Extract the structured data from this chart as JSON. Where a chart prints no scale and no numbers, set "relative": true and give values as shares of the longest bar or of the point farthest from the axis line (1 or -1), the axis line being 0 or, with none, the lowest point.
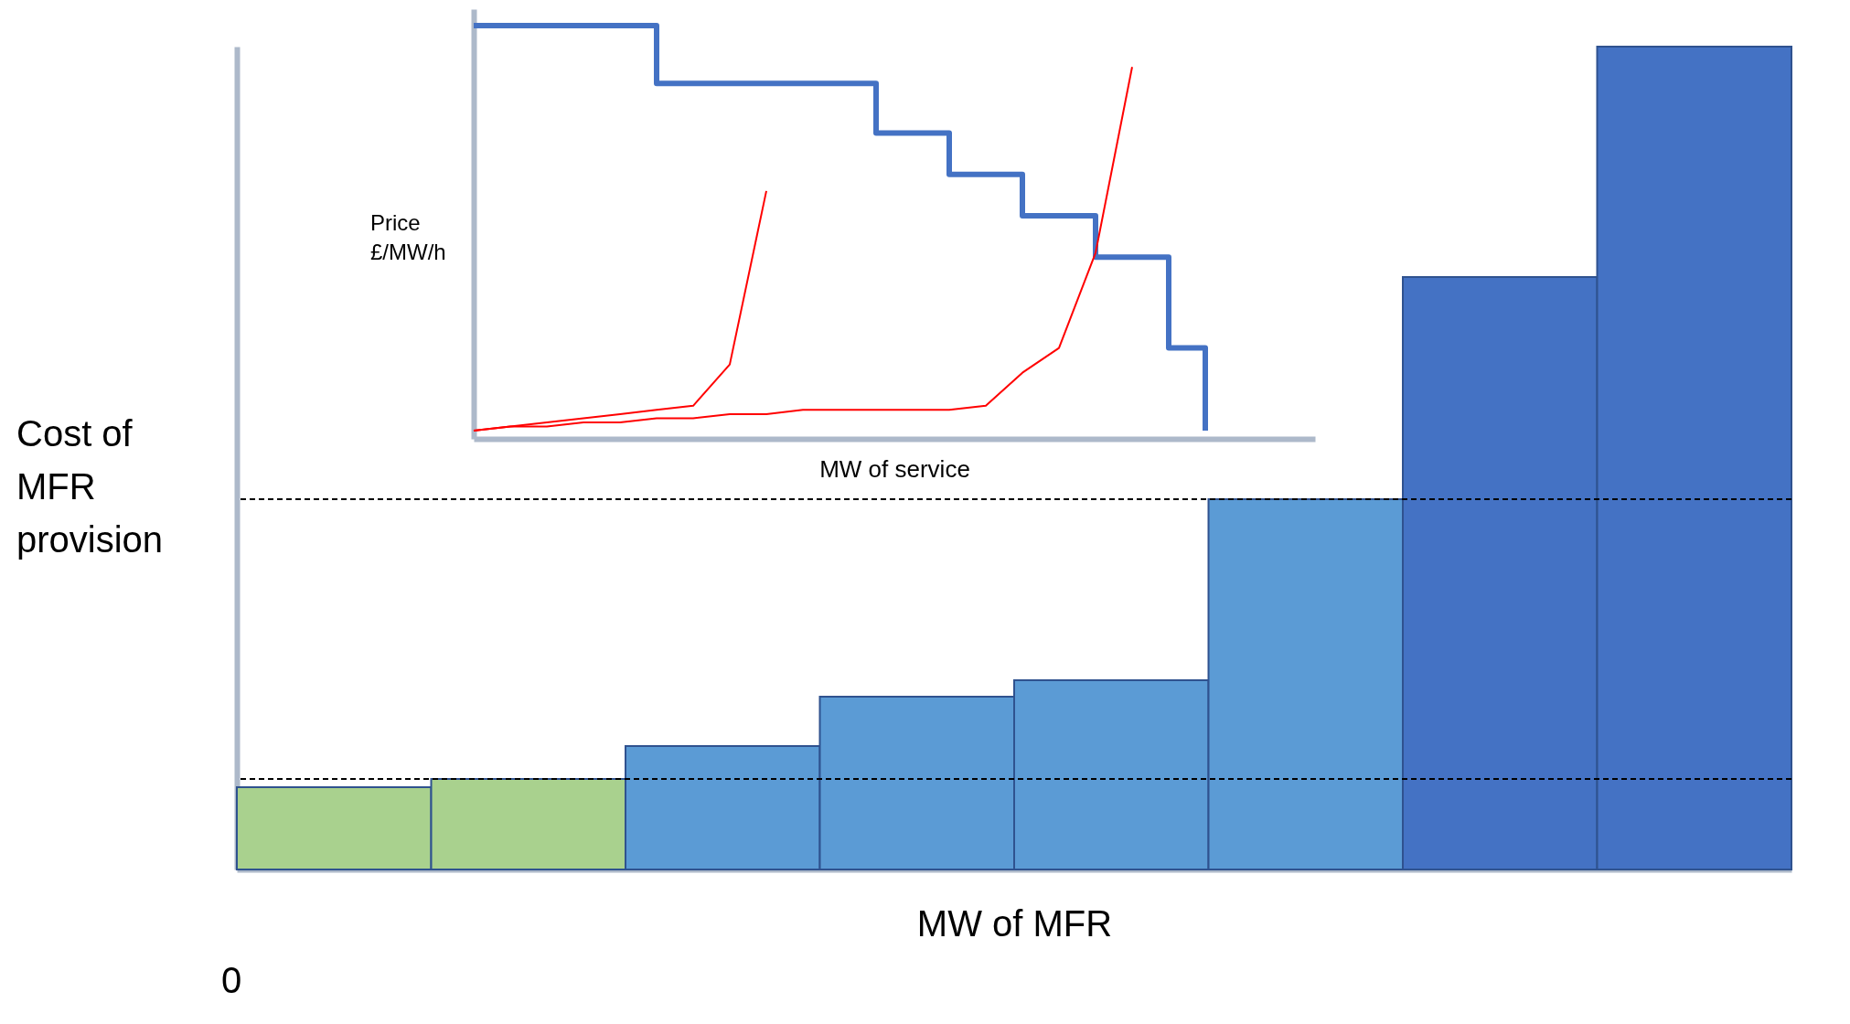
{
  "chart_data": [
    {
      "type": "bar",
      "relative": true,
      "xlabel": "MW of MFR",
      "ylabel": "Cost of MFR provision",
      "categories": [
        null,
        null,
        null,
        null,
        null,
        null,
        null,
        null
      ],
      "values": [
        0.1,
        0.11,
        0.15,
        0.21,
        0.23,
        0.45,
        0.72,
        1
      ],
      "colors": [
        "#a9d18e",
        "#a9d18e",
        "#5b9bd5",
        "#5b9bd5",
        "#5b9bd5",
        "#5b9bd5",
        "#4472c4",
        "#4472c4"
      ],
      "ref_lines": [
        {
          "axis": "y",
          "value": 0.11,
          "color": "#000000",
          "line_style": "dashed"
        },
        {
          "axis": "y",
          "value": 0.45,
          "color": "#000000",
          "line_style": "dashed"
        }
      ],
      "annotations": [
        "0"
      ],
      "grid": false
    },
    {
      "type": "step",
      "relative": true,
      "xlabel": "MW of service",
      "ylabel": "Price £/MW/h",
      "categories": [
        null,
        null,
        null,
        null,
        null,
        null,
        null,
        null,
        null,
        null,
        null,
        null,
        null,
        null,
        null,
        null,
        null,
        null,
        null,
        null,
        null,
        null,
        null,
        null
      ],
      "series": [
        {
          "type": "step",
          "color": "#4472c4",
          "values": [
            1,
            1,
            1,
            1,
            1,
            0.86,
            0.86,
            0.86,
            0.86,
            0.86,
            0.86,
            0.74,
            0.74,
            0.64,
            0.64,
            0.54,
            0.54,
            0.44,
            0.44,
            0.22,
            0.02,
            null,
            null,
            null
          ]
        },
        {
          "type": "line",
          "color": "#ff0000",
          "values": [
            0.02,
            0.03,
            0.04,
            0.05,
            0.06,
            0.07,
            0.08,
            0.18,
            0.6,
            null,
            null,
            null,
            null,
            null,
            null,
            null,
            null,
            null,
            null,
            null,
            null,
            null,
            null,
            null
          ]
        },
        {
          "type": "line",
          "color": "#ff0000",
          "values": [
            0.02,
            0.03,
            0.03,
            0.04,
            0.04,
            0.05,
            0.05,
            0.06,
            0.06,
            0.07,
            0.07,
            0.07,
            0.07,
            0.07,
            0.08,
            0.16,
            0.22,
            0.45,
            0.9,
            null,
            null,
            null,
            null,
            null
          ]
        }
      ],
      "grid": false
    }
  ]
}
